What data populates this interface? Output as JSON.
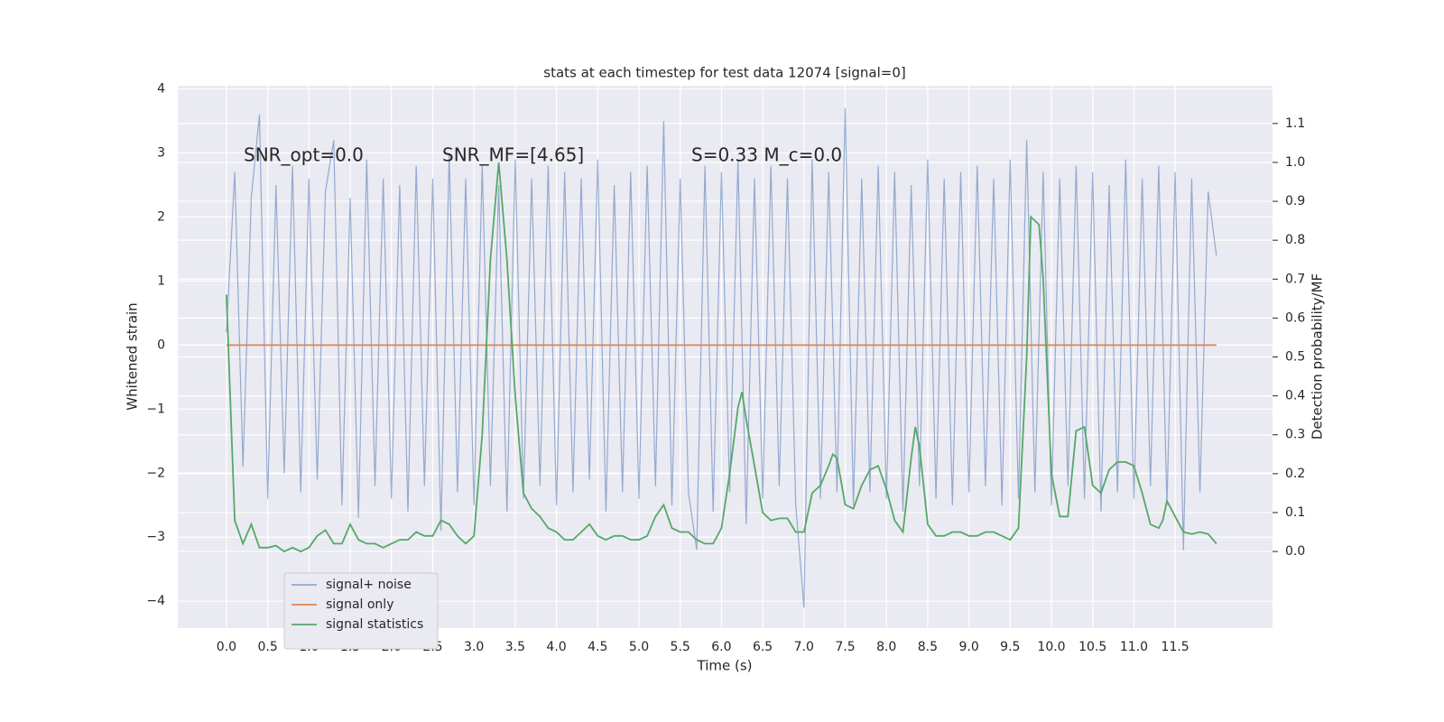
{
  "chart_data": {
    "type": "line",
    "title": "stats at each timestep for test data 12074 [signal=0]",
    "xlabel": "Time (s)",
    "ylabel": "Whitened strain",
    "y2label": "Detection probability/MF",
    "annotations": [
      "SNR_opt=0.0",
      "SNR_MF=[4.65]",
      "S=0.33   M_c=0.0"
    ],
    "xlim": [
      -0.59,
      12.68
    ],
    "ylim": [
      -4.42,
      4.05
    ],
    "y2lim": [
      -0.197,
      1.197
    ],
    "xticks": [
      {
        "value": 0,
        "label": "0.0"
      },
      0.5,
      {
        "value": 1,
        "label": "1.0"
      },
      1.5,
      {
        "value": 2,
        "label": "2.0"
      },
      2.5,
      {
        "value": 3,
        "label": "3.0"
      },
      3.5,
      {
        "value": 4,
        "label": "4.0"
      },
      4.5,
      {
        "value": 5,
        "label": "5.0"
      },
      5.5,
      {
        "value": 6,
        "label": "6.0"
      },
      6.5,
      {
        "value": 7,
        "label": "7.0"
      },
      7.5,
      {
        "value": 8,
        "label": "8.0"
      },
      8.5,
      {
        "value": 9,
        "label": "9.0"
      },
      9.5,
      {
        "value": 10,
        "label": "10.0"
      },
      10.5,
      {
        "value": 11,
        "label": "11.0"
      },
      11.5
    ],
    "yticks": [
      {
        "value": -4,
        "label": "−4"
      },
      {
        "value": -3,
        "label": "−3"
      },
      {
        "value": -2,
        "label": "−2"
      },
      {
        "value": -1,
        "label": "−1"
      },
      0,
      1,
      2,
      3,
      4
    ],
    "y2ticks": [
      {
        "value": 0,
        "label": "0.0"
      },
      0.1,
      0.2,
      0.3,
      0.4,
      0.5,
      0.6,
      0.7,
      0.8,
      0.9,
      {
        "value": 1,
        "label": "1.0"
      },
      1.1
    ],
    "grid": true,
    "legend": "lower left",
    "series": [
      {
        "name": "signal+ noise",
        "color": "#4c72b0",
        "axis": "y",
        "x": [
          0,
          0.1,
          0.2,
          0.3,
          0.4,
          0.5,
          0.6,
          0.7,
          0.8,
          0.9,
          1,
          1.1,
          1.2,
          1.3,
          1.4,
          1.5,
          1.6,
          1.7,
          1.8,
          1.9,
          2,
          2.1,
          2.2,
          2.3,
          2.4,
          2.5,
          2.6,
          2.7,
          2.8,
          2.9,
          3,
          3.1,
          3.2,
          3.3,
          3.4,
          3.5,
          3.6,
          3.7,
          3.8,
          3.9,
          4,
          4.1,
          4.2,
          4.3,
          4.4,
          4.5,
          4.6,
          4.7,
          4.8,
          4.9,
          5,
          5.1,
          5.2,
          5.3,
          5.4,
          5.5,
          5.6,
          5.7,
          5.8,
          5.9,
          6,
          6.1,
          6.2,
          6.3,
          6.4,
          6.5,
          6.6,
          6.7,
          6.8,
          6.9,
          7,
          7.1,
          7.2,
          7.3,
          7.4,
          7.5,
          7.6,
          7.7,
          7.8,
          7.9,
          8,
          8.1,
          8.2,
          8.3,
          8.4,
          8.5,
          8.6,
          8.7,
          8.8,
          8.9,
          9,
          9.1,
          9.2,
          9.3,
          9.4,
          9.5,
          9.6,
          9.7,
          9.8,
          9.9,
          10,
          10.1,
          10.2,
          10.3,
          10.4,
          10.5,
          10.6,
          10.7,
          10.8,
          10.9,
          11,
          11.1,
          11.2,
          11.3,
          11.4,
          11.5,
          11.6,
          11.7,
          11.8,
          11.9,
          12
        ],
        "values": [
          0.2,
          2.7,
          -1.9,
          2.3,
          3.6,
          -2.4,
          2.5,
          -2.0,
          2.8,
          -2.3,
          2.6,
          -2.1,
          2.4,
          3.2,
          -2.5,
          2.3,
          -2.7,
          2.9,
          -2.2,
          2.6,
          -2.4,
          2.5,
          -2.6,
          2.8,
          -2.2,
          2.6,
          -2.9,
          3.0,
          -2.3,
          2.6,
          -2.5,
          2.8,
          -2.2,
          2.5,
          -2.6,
          2.9,
          -2.4,
          2.6,
          -2.2,
          2.8,
          -2.5,
          2.7,
          -2.3,
          2.6,
          -2.1,
          2.9,
          -2.6,
          2.5,
          -2.3,
          2.7,
          -2.4,
          2.8,
          -2.2,
          3.5,
          -2.5,
          2.6,
          -2.3,
          -3.2,
          2.8,
          -2.6,
          2.7,
          -2.3,
          2.9,
          -2.8,
          2.6,
          -2.4,
          2.8,
          -2.2,
          2.6,
          -2.5,
          -4.1,
          2.9,
          -2.4,
          2.7,
          -2.3,
          3.7,
          -2.5,
          2.6,
          -2.3,
          2.8,
          -2.4,
          2.7,
          -2.6,
          2.5,
          -2.2,
          2.9,
          -2.4,
          2.6,
          -2.5,
          2.7,
          -2.3,
          2.8,
          -2.2,
          2.6,
          -2.5,
          2.9,
          -2.4,
          3.2,
          -2.3,
          2.7,
          -2.5,
          2.6,
          -2.2,
          2.8,
          -2.4,
          2.7,
          -2.6,
          2.5,
          -2.3,
          2.9,
          -2.4,
          2.6,
          -2.2,
          2.8,
          -2.5,
          2.7,
          -3.2,
          2.6,
          -2.3,
          2.4,
          1.4
        ]
      },
      {
        "name": "signal only",
        "color": "#dd8452",
        "axis": "y",
        "x": [
          0,
          12
        ],
        "values": [
          0,
          0
        ]
      },
      {
        "name": "signal statistics",
        "color": "#55a868",
        "axis": "y2",
        "x": [
          0,
          0.1,
          0.2,
          0.3,
          0.4,
          0.5,
          0.6,
          0.7,
          0.8,
          0.9,
          1,
          1.1,
          1.2,
          1.3,
          1.4,
          1.5,
          1.6,
          1.7,
          1.8,
          1.9,
          2,
          2.1,
          2.2,
          2.3,
          2.4,
          2.5,
          2.6,
          2.7,
          2.8,
          2.9,
          3,
          3.1,
          3.2,
          3.3,
          3.4,
          3.5,
          3.6,
          3.7,
          3.8,
          3.9,
          4,
          4.1,
          4.2,
          4.3,
          4.4,
          4.5,
          4.6,
          4.7,
          4.8,
          4.9,
          5,
          5.1,
          5.2,
          5.3,
          5.4,
          5.5,
          5.6,
          5.7,
          5.8,
          5.9,
          6,
          6.1,
          6.2,
          6.25,
          6.3,
          6.4,
          6.5,
          6.6,
          6.7,
          6.8,
          6.9,
          7,
          7.1,
          7.2,
          7.3,
          7.35,
          7.4,
          7.5,
          7.6,
          7.7,
          7.8,
          7.9,
          8,
          8.1,
          8.2,
          8.3,
          8.35,
          8.4,
          8.5,
          8.6,
          8.7,
          8.8,
          8.9,
          9,
          9.1,
          9.2,
          9.3,
          9.4,
          9.5,
          9.6,
          9.7,
          9.75,
          9.85,
          9.9,
          10,
          10.1,
          10.2,
          10.3,
          10.4,
          10.5,
          10.6,
          10.7,
          10.8,
          10.9,
          11,
          11.1,
          11.2,
          11.3,
          11.35,
          11.4,
          11.5,
          11.6,
          11.7,
          11.8,
          11.9,
          12
        ],
        "values": [
          0.66,
          0.08,
          0.02,
          0.07,
          0.01,
          0.01,
          0.015,
          0.0,
          0.01,
          0.0,
          0.01,
          0.04,
          0.055,
          0.02,
          0.02,
          0.07,
          0.03,
          0.02,
          0.02,
          0.01,
          0.02,
          0.03,
          0.03,
          0.05,
          0.04,
          0.04,
          0.08,
          0.07,
          0.04,
          0.02,
          0.04,
          0.3,
          0.75,
          1.0,
          0.75,
          0.4,
          0.15,
          0.11,
          0.09,
          0.06,
          0.05,
          0.03,
          0.03,
          0.05,
          0.07,
          0.04,
          0.03,
          0.04,
          0.04,
          0.03,
          0.03,
          0.04,
          0.09,
          0.12,
          0.06,
          0.05,
          0.05,
          0.03,
          0.02,
          0.02,
          0.06,
          0.2,
          0.37,
          0.41,
          0.34,
          0.22,
          0.1,
          0.08,
          0.085,
          0.085,
          0.05,
          0.05,
          0.15,
          0.17,
          0.22,
          0.25,
          0.24,
          0.12,
          0.11,
          0.17,
          0.21,
          0.22,
          0.16,
          0.08,
          0.05,
          0.24,
          0.32,
          0.27,
          0.07,
          0.04,
          0.04,
          0.05,
          0.05,
          0.04,
          0.04,
          0.05,
          0.05,
          0.04,
          0.03,
          0.06,
          0.5,
          0.86,
          0.84,
          0.7,
          0.2,
          0.09,
          0.09,
          0.31,
          0.32,
          0.17,
          0.15,
          0.21,
          0.23,
          0.23,
          0.22,
          0.15,
          0.07,
          0.06,
          0.08,
          0.13,
          0.09,
          0.05,
          0.045,
          0.05,
          0.045,
          0.02
        ]
      }
    ]
  }
}
